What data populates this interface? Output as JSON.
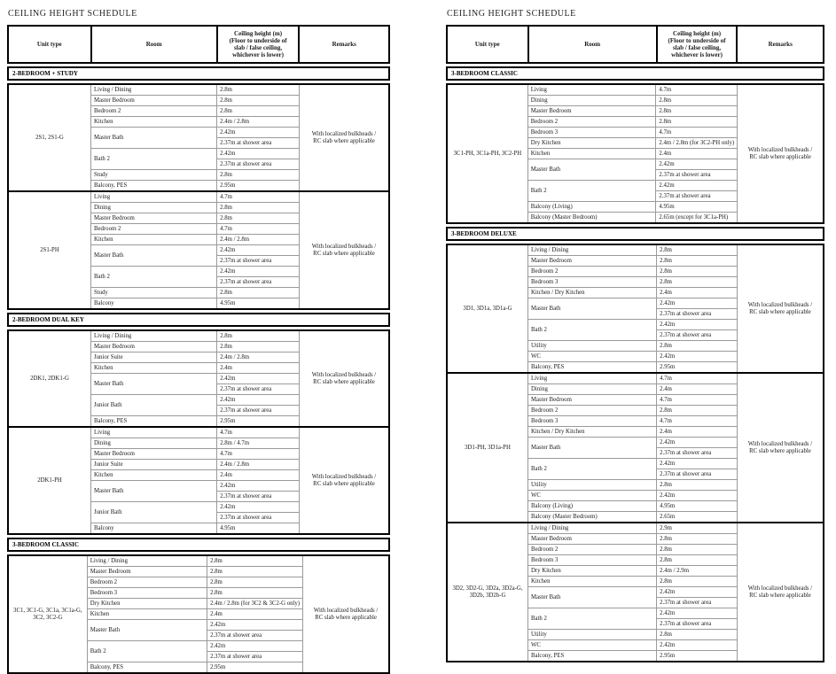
{
  "colors": {
    "background": "#ffffff",
    "border_heavy": "#000000",
    "border_light": "#9a9a9a",
    "text": "#1a1a1a"
  },
  "columns": [
    "Unit type",
    "Room",
    "Ceiling height (m)\n(Floor to underside of\nslab / false ceiling,\nwhichever is lower)",
    "Remarks"
  ],
  "tables": [
    {
      "title": "CEILING HEIGHT SCHEDULE",
      "sections": [
        {
          "name": "2-BEDROOM + STUDY",
          "groups": [
            {
              "unit": "2S1, 2S1-G",
              "remarks": "With localized bulkheads /\nRC slab where applicable",
              "rooms": [
                {
                  "name": "Living / Dining",
                  "values": [
                    "2.8m"
                  ]
                },
                {
                  "name": "Master Bedroom",
                  "values": [
                    "2.8m"
                  ]
                },
                {
                  "name": "Bedroom 2",
                  "values": [
                    "2.8m"
                  ]
                },
                {
                  "name": "Kitchen",
                  "values": [
                    "2.4m / 2.8m"
                  ]
                },
                {
                  "name": "Master Bath",
                  "values": [
                    "2.42m",
                    "2.37m at shower area"
                  ]
                },
                {
                  "name": "Bath 2",
                  "values": [
                    "2.42m",
                    "2.37m at shower area"
                  ]
                },
                {
                  "name": "Study",
                  "values": [
                    "2.8m"
                  ]
                },
                {
                  "name": "Balcony, PES",
                  "values": [
                    "2.95m"
                  ]
                }
              ]
            },
            {
              "unit": "2S1-PH",
              "remarks": "With localized bulkheads /\nRC slab where applicable",
              "rooms": [
                {
                  "name": "Living",
                  "values": [
                    "4.7m"
                  ]
                },
                {
                  "name": "Dining",
                  "values": [
                    "2.8m"
                  ]
                },
                {
                  "name": "Master Bedroom",
                  "values": [
                    "2.8m"
                  ]
                },
                {
                  "name": "Bedroom 2",
                  "values": [
                    "4.7m"
                  ]
                },
                {
                  "name": "Kitchen",
                  "values": [
                    "2.4m / 2.8m"
                  ]
                },
                {
                  "name": "Master Bath",
                  "values": [
                    "2.42m",
                    "2.37m at shower area"
                  ]
                },
                {
                  "name": "Bath 2",
                  "values": [
                    "2.42m",
                    "2.37m at shower area"
                  ]
                },
                {
                  "name": "Study",
                  "values": [
                    "2.8m"
                  ]
                },
                {
                  "name": "Balcony",
                  "values": [
                    "4.95m"
                  ]
                }
              ]
            }
          ]
        },
        {
          "name": "2-BEDROOM DUAL KEY",
          "groups": [
            {
              "unit": "2DK1, 2DK1-G",
              "remarks": "With localized bulkheads /\nRC slab where applicable",
              "rooms": [
                {
                  "name": "Living / Dining",
                  "values": [
                    "2.8m"
                  ]
                },
                {
                  "name": "Master Bedroom",
                  "values": [
                    "2.8m"
                  ]
                },
                {
                  "name": "Junior Suite",
                  "values": [
                    "2.4m / 2.8m"
                  ]
                },
                {
                  "name": "Kitchen",
                  "values": [
                    "2.4m"
                  ]
                },
                {
                  "name": "Master Bath",
                  "values": [
                    "2.42m",
                    "2.37m at shower area"
                  ]
                },
                {
                  "name": "Junior Bath",
                  "values": [
                    "2.42m",
                    "2.37m at shower area"
                  ]
                },
                {
                  "name": "Balcony, PES",
                  "values": [
                    "2.95m"
                  ]
                }
              ]
            },
            {
              "unit": "2DK1-PH",
              "remarks": "With localized bulkheads /\nRC slab where applicable",
              "rooms": [
                {
                  "name": "Living",
                  "values": [
                    "4.7m"
                  ]
                },
                {
                  "name": "Dining",
                  "values": [
                    "2.8m / 4.7m"
                  ]
                },
                {
                  "name": "Master Bedroom",
                  "values": [
                    "4.7m"
                  ]
                },
                {
                  "name": "Junior Suite",
                  "values": [
                    "2.4m / 2.8m"
                  ]
                },
                {
                  "name": "Kitchen",
                  "values": [
                    "2.4m"
                  ]
                },
                {
                  "name": "Master Bath",
                  "values": [
                    "2.42m",
                    "2.37m at shower area"
                  ]
                },
                {
                  "name": "Junior Bath",
                  "values": [
                    "2.42m",
                    "2.37m at shower area"
                  ]
                },
                {
                  "name": "Balcony",
                  "values": [
                    "4.95m"
                  ]
                }
              ]
            }
          ]
        },
        {
          "name": "3-BEDROOM CLASSIC",
          "groups": [
            {
              "unit": "3C1, 3C1-G, 3C1a, 3C1a-G, 3C2, 3C2-G",
              "remarks": "With localized bulkheads /\nRC slab where applicable",
              "rooms": [
                {
                  "name": "Living / Dining",
                  "values": [
                    "2.8m"
                  ]
                },
                {
                  "name": "Master Bedroom",
                  "values": [
                    "2.8m"
                  ]
                },
                {
                  "name": "Bedroom 2",
                  "values": [
                    "2.8m"
                  ]
                },
                {
                  "name": "Bedroom 3",
                  "values": [
                    "2.8m"
                  ]
                },
                {
                  "name": "Dry Kitchen",
                  "values": [
                    "2.4m / 2.8m (for 3C2 & 3C2-G only)"
                  ]
                },
                {
                  "name": "Kitchen",
                  "values": [
                    "2.4m"
                  ]
                },
                {
                  "name": "Master Bath",
                  "values": [
                    "2.42m",
                    "2.37m at shower area"
                  ]
                },
                {
                  "name": "Bath 2",
                  "values": [
                    "2.42m",
                    "2.37m at shower area"
                  ]
                },
                {
                  "name": "Balcony, PES",
                  "values": [
                    "2.95m"
                  ]
                }
              ]
            }
          ]
        }
      ]
    },
    {
      "title": "CEILING HEIGHT SCHEDULE",
      "sections": [
        {
          "name": "3-BEDROOM CLASSIC",
          "groups": [
            {
              "unit": "3C1-PH, 3C1a-PH, 3C2-PH",
              "remarks": "With localized bulkheads /\nRC slab where applicable",
              "rooms": [
                {
                  "name": "Living",
                  "values": [
                    "4.7m"
                  ]
                },
                {
                  "name": "Dining",
                  "values": [
                    "2.8m"
                  ]
                },
                {
                  "name": "Master Bedroom",
                  "values": [
                    "2.8m"
                  ]
                },
                {
                  "name": "Bedroom 2",
                  "values": [
                    "2.8m"
                  ]
                },
                {
                  "name": "Bedroom 3",
                  "values": [
                    "4.7m"
                  ]
                },
                {
                  "name": "Dry Kitchen",
                  "values": [
                    "2.4m / 2.8m (for 3C2-PH only)"
                  ]
                },
                {
                  "name": "Kitchen",
                  "values": [
                    "2.4m"
                  ]
                },
                {
                  "name": "Master Bath",
                  "values": [
                    "2.42m",
                    "2.37m at shower area"
                  ]
                },
                {
                  "name": "Bath 2",
                  "values": [
                    "2.42m",
                    "2.37m at shower area"
                  ]
                },
                {
                  "name": "Balcony (Living)",
                  "values": [
                    "4.95m"
                  ]
                },
                {
                  "name": "Balcony (Master Bedroom)",
                  "values": [
                    "2.65m (except for 3C1a-PH)"
                  ]
                }
              ]
            }
          ]
        },
        {
          "name": "3-BEDROOM DELUXE",
          "groups": [
            {
              "unit": "3D1, 3D1a, 3D1a-G",
              "remarks": "With localized bulkheads /\nRC slab where applicable",
              "rooms": [
                {
                  "name": "Living / Dining",
                  "values": [
                    "2.8m"
                  ]
                },
                {
                  "name": "Master Bedroom",
                  "values": [
                    "2.8m"
                  ]
                },
                {
                  "name": "Bedroom 2",
                  "values": [
                    "2.8m"
                  ]
                },
                {
                  "name": "Bedroom 3",
                  "values": [
                    "2.8m"
                  ]
                },
                {
                  "name": "Kitchen / Dry Kitchen",
                  "values": [
                    "2.4m"
                  ]
                },
                {
                  "name": "Master Bath",
                  "values": [
                    "2.42m",
                    "2.37m at shower area"
                  ]
                },
                {
                  "name": "Bath 2",
                  "values": [
                    "2.42m",
                    "2.37m at shower area"
                  ]
                },
                {
                  "name": "Utility",
                  "values": [
                    "2.8m"
                  ]
                },
                {
                  "name": "WC",
                  "values": [
                    "2.42m"
                  ]
                },
                {
                  "name": "Balcony, PES",
                  "values": [
                    "2.95m"
                  ]
                }
              ]
            },
            {
              "unit": "3D1-PH, 3D1a-PH",
              "remarks": "With localized bulkheads /\nRC slab where applicable",
              "rooms": [
                {
                  "name": "Living",
                  "values": [
                    "4.7m"
                  ]
                },
                {
                  "name": "Dining",
                  "values": [
                    "2.4m"
                  ]
                },
                {
                  "name": "Master Bedroom",
                  "values": [
                    "4.7m"
                  ]
                },
                {
                  "name": "Bedroom 2",
                  "values": [
                    "2.8m"
                  ]
                },
                {
                  "name": "Bedroom 3",
                  "values": [
                    "4.7m"
                  ]
                },
                {
                  "name": "Kitchen / Dry Kitchen",
                  "values": [
                    "2.4m"
                  ]
                },
                {
                  "name": "Master Bath",
                  "values": [
                    "2.42m",
                    "2.37m at shower area"
                  ]
                },
                {
                  "name": "Bath 2",
                  "values": [
                    "2.42m",
                    "2.37m at shower area"
                  ]
                },
                {
                  "name": "Utility",
                  "values": [
                    "2.8m"
                  ]
                },
                {
                  "name": "WC",
                  "values": [
                    "2.42m"
                  ]
                },
                {
                  "name": "Balcony (Living)",
                  "values": [
                    "4.95m"
                  ]
                },
                {
                  "name": "Balcony (Master Bedroom)",
                  "values": [
                    "2.65m"
                  ]
                }
              ]
            },
            {
              "unit": "3D2, 3D2-G, 3D2a, 3D2a-G, 3D2b, 3D2b-G",
              "remarks": "With localized bulkheads /\nRC slab where applicable",
              "rooms": [
                {
                  "name": "Living / Dining",
                  "values": [
                    "2.9m"
                  ]
                },
                {
                  "name": "Master Bedroom",
                  "values": [
                    "2.8m"
                  ]
                },
                {
                  "name": "Bedroom 2",
                  "values": [
                    "2.8m"
                  ]
                },
                {
                  "name": "Bedroom 3",
                  "values": [
                    "2.8m"
                  ]
                },
                {
                  "name": "Dry Kitchen",
                  "values": [
                    "2.4m / 2.9m"
                  ]
                },
                {
                  "name": "Kitchen",
                  "values": [
                    "2.8m"
                  ]
                },
                {
                  "name": "Master Bath",
                  "values": [
                    "2.42m",
                    "2.37m at shower area"
                  ]
                },
                {
                  "name": "Bath 2",
                  "values": [
                    "2.42m",
                    "2.37m at shower area"
                  ]
                },
                {
                  "name": "Utility",
                  "values": [
                    "2.8m"
                  ]
                },
                {
                  "name": "WC",
                  "values": [
                    "2.42m"
                  ]
                },
                {
                  "name": "Balcony, PES",
                  "values": [
                    "2.95m"
                  ]
                }
              ]
            }
          ]
        }
      ]
    }
  ]
}
